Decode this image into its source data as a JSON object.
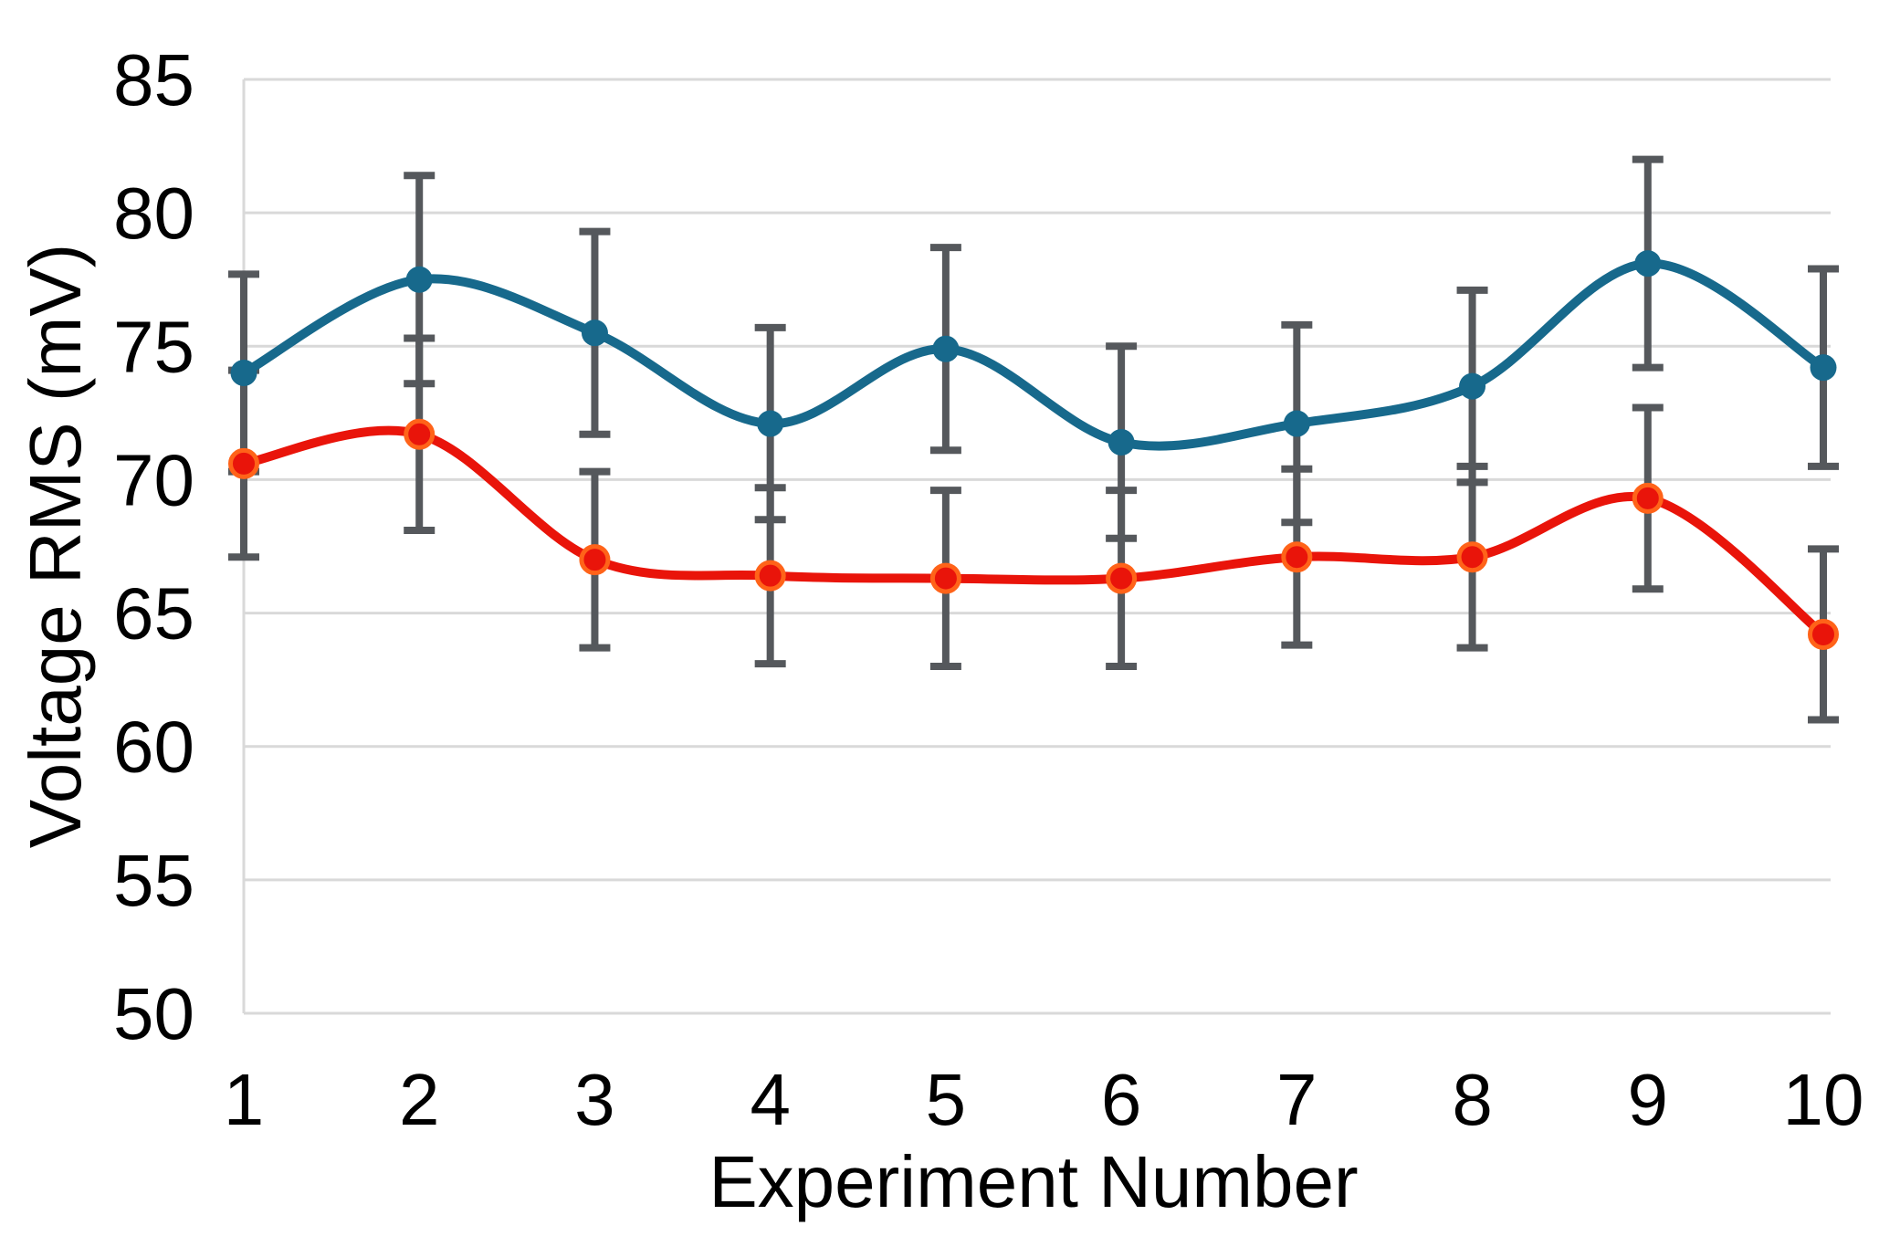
{
  "chart_data": {
    "type": "line",
    "title": "",
    "xlabel": "Experiment Number",
    "ylabel": "Voltage RMS (mV)",
    "x": [
      1,
      2,
      3,
      4,
      5,
      6,
      7,
      8,
      9,
      10
    ],
    "x_tick_labels": [
      "1",
      "2",
      "3",
      "4",
      "5",
      "6",
      "7",
      "8",
      "9",
      "10"
    ],
    "y_ticks": [
      50,
      55,
      60,
      65,
      70,
      75,
      80,
      85
    ],
    "y_tick_labels": [
      "50",
      "55",
      "60",
      "65",
      "70",
      "75",
      "80",
      "85"
    ],
    "ylim": [
      50,
      85
    ],
    "xlim": [
      1,
      10
    ],
    "grid": "horizontal",
    "legend": "none",
    "smooth_lines": true,
    "markers": "circle",
    "series": [
      {
        "name": "blue-series",
        "color": "#17698c",
        "values": [
          74.0,
          77.5,
          75.5,
          72.1,
          74.9,
          71.4,
          72.1,
          73.5,
          78.1,
          74.2
        ],
        "errors": [
          3.7,
          3.9,
          3.8,
          3.6,
          3.8,
          3.6,
          3.7,
          3.6,
          3.9,
          3.7
        ]
      },
      {
        "name": "red-series",
        "color": "#e9140a",
        "marker_stroke": "#ff6319",
        "values": [
          70.6,
          71.7,
          67.0,
          66.4,
          66.3,
          66.3,
          67.1,
          67.1,
          69.3,
          64.2
        ],
        "errors": [
          3.5,
          3.6,
          3.3,
          3.3,
          3.3,
          3.3,
          3.3,
          3.4,
          3.4,
          3.2
        ]
      }
    ],
    "style": {
      "error_bar_color": "#55585c",
      "gridline_color": "#d9d9d9",
      "axis_line_color": "#d9d9d9",
      "text_color": "#000000",
      "background": "#ffffff"
    }
  }
}
